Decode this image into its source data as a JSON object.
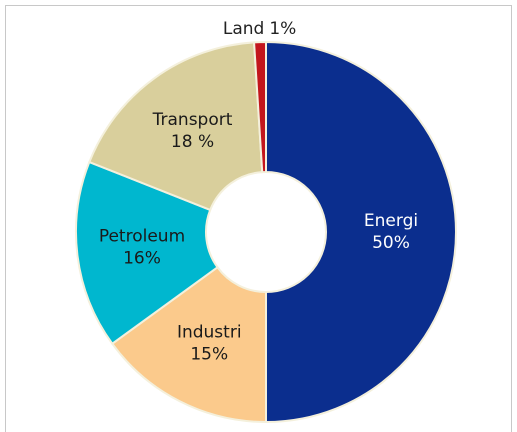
{
  "chart_data": {
    "type": "donut",
    "categories": [
      "Energi",
      "Industri",
      "Petroleum",
      "Transport",
      "Land"
    ],
    "values": [
      50,
      15,
      16,
      18,
      1
    ],
    "value_labels": [
      "50%",
      "15%",
      "16%",
      "18 %",
      "1%"
    ],
    "colors": [
      "#0b2e8e",
      "#fbca8c",
      "#00b7cf",
      "#d9cf9c",
      "#c3161d"
    ]
  }
}
